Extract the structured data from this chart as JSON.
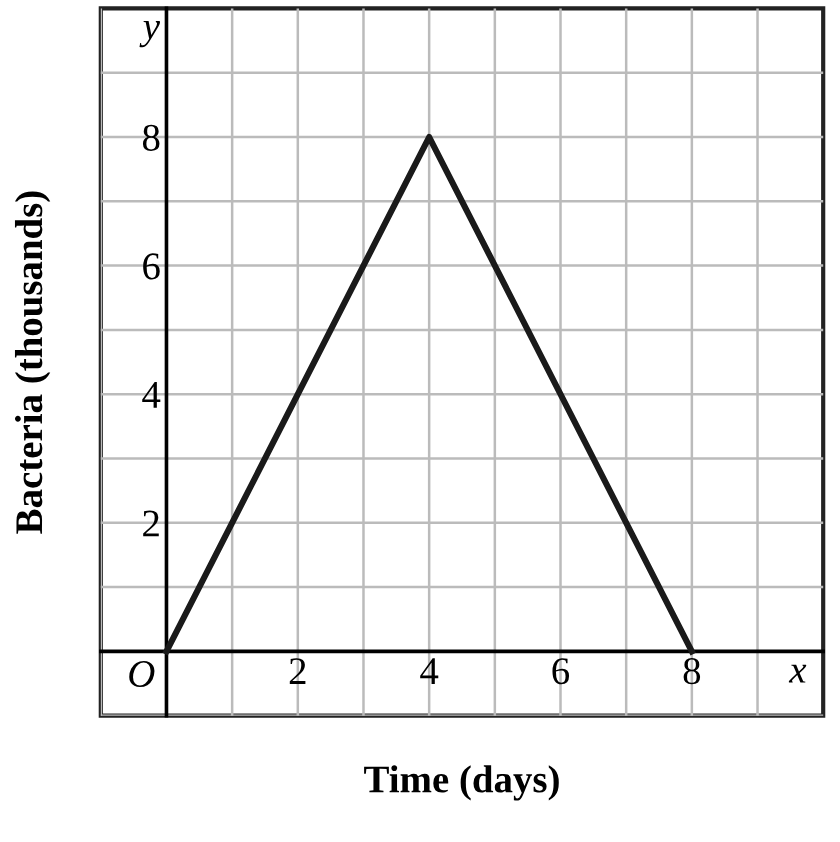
{
  "chart_data": {
    "type": "line",
    "xlabel": "Time (days)",
    "ylabel": "Bacteria (thousands)",
    "x": [
      0,
      4,
      8
    ],
    "series": [
      {
        "color": "#1a1a1a",
        "values": [
          0,
          8,
          0
        ]
      }
    ],
    "xlim": [
      -1,
      10
    ],
    "ylim": [
      -1,
      10
    ],
    "xticks": [
      {
        "value": -1,
        "label": null
      },
      {
        "value": 1,
        "label": null
      },
      2,
      {
        "value": 3,
        "label": null
      },
      4,
      {
        "value": 5,
        "label": null
      },
      6,
      {
        "value": 7,
        "label": null
      },
      8,
      {
        "value": 9,
        "label": null
      }
    ],
    "yticks": [
      {
        "value": -1,
        "label": null
      },
      {
        "value": 1,
        "label": null
      },
      2,
      {
        "value": 3,
        "label": null
      },
      4,
      {
        "value": 5,
        "label": null
      },
      6,
      {
        "value": 7,
        "label": null
      },
      8,
      {
        "value": 9,
        "label": null
      }
    ],
    "grid": true,
    "marker": "none",
    "line_style": "solid",
    "annotations": [
      {
        "text": "O",
        "x": 0,
        "y": 0
      },
      "x",
      "y"
    ]
  }
}
